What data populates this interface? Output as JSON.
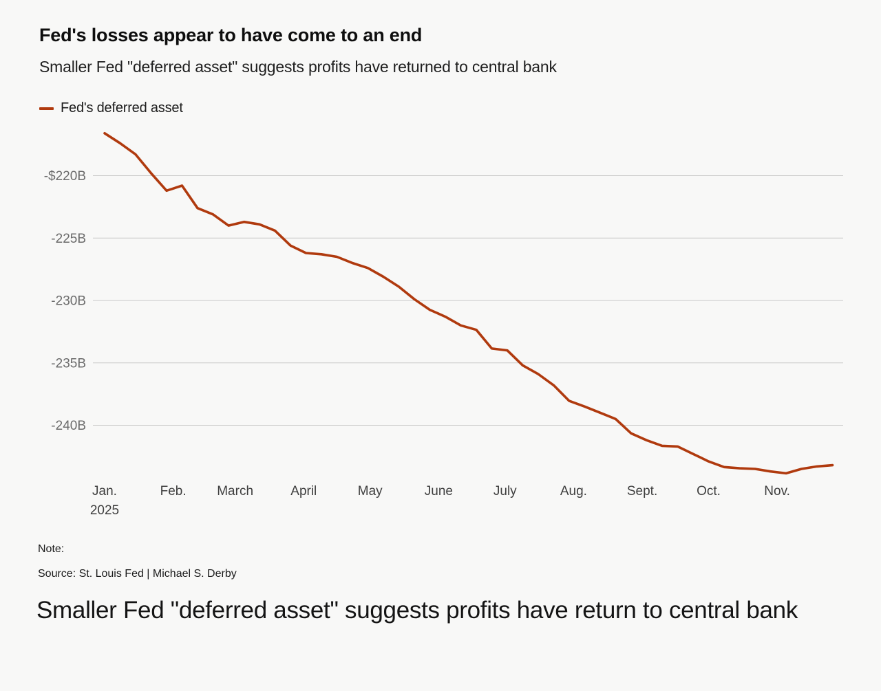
{
  "header": {
    "title": "Fed's losses appear to have come to an end",
    "subtitle": "Smaller Fed \"deferred asset\" suggests profits have returned to central bank"
  },
  "legend": {
    "label": "Fed's deferred asset",
    "swatch_color": "#b03a0e"
  },
  "chart_data": {
    "type": "line",
    "title": "Fed's losses appear to have come to an end",
    "subtitle": "Smaller Fed \"deferred asset\" suggests profits have returned to central bank",
    "xlabel": "",
    "ylabel": "",
    "grid": true,
    "legend_position": "top-left",
    "background_color": "#f8f8f7",
    "x_origin": "2025-01-01",
    "ylim": [
      -246,
      -215
    ],
    "y_ticks": [
      {
        "label": "-$220B",
        "value": -220
      },
      {
        "label": "-225B",
        "value": -225
      },
      {
        "label": "-230B",
        "value": -230
      },
      {
        "label": "-235B",
        "value": -235
      },
      {
        "label": "-240B",
        "value": -240
      }
    ],
    "x_ticks": [
      {
        "label": "Jan.",
        "sublabel": "2025",
        "date": "2025-01-01"
      },
      {
        "label": "Feb.",
        "date": "2025-02-01"
      },
      {
        "label": "March",
        "date": "2025-03-01"
      },
      {
        "label": "April",
        "date": "2025-04-01"
      },
      {
        "label": "May",
        "date": "2025-05-01"
      },
      {
        "label": "June",
        "date": "2025-06-01"
      },
      {
        "label": "July",
        "date": "2025-07-01"
      },
      {
        "label": "Aug.",
        "date": "2025-08-01"
      },
      {
        "label": "Sept.",
        "date": "2025-09-01"
      },
      {
        "label": "Oct.",
        "date": "2025-10-01"
      },
      {
        "label": "Nov.",
        "date": "2025-11-01"
      }
    ],
    "series": [
      {
        "name": "Fed's deferred asset",
        "color": "#b03a0e",
        "unit": "billion USD",
        "x": [
          "2025-01-01",
          "2025-01-08",
          "2025-01-15",
          "2025-01-22",
          "2025-01-29",
          "2025-02-05",
          "2025-02-12",
          "2025-02-19",
          "2025-02-26",
          "2025-03-05",
          "2025-03-12",
          "2025-03-19",
          "2025-03-26",
          "2025-04-02",
          "2025-04-09",
          "2025-04-16",
          "2025-04-23",
          "2025-04-30",
          "2025-05-07",
          "2025-05-14",
          "2025-05-21",
          "2025-05-28",
          "2025-06-04",
          "2025-06-11",
          "2025-06-18",
          "2025-06-25",
          "2025-07-02",
          "2025-07-09",
          "2025-07-16",
          "2025-07-23",
          "2025-07-30",
          "2025-08-06",
          "2025-08-13",
          "2025-08-20",
          "2025-08-27",
          "2025-09-03",
          "2025-09-10",
          "2025-09-17",
          "2025-09-24",
          "2025-10-01",
          "2025-10-08",
          "2025-10-15",
          "2025-10-22",
          "2025-10-29",
          "2025-11-05",
          "2025-11-12",
          "2025-11-19",
          "2025-11-26"
        ],
        "values": [
          -216.6,
          -217.4,
          -218.3,
          -219.8,
          -221.2,
          -220.8,
          -222.6,
          -223.1,
          -224.0,
          -223.7,
          -223.9,
          -224.4,
          -225.6,
          -226.2,
          -226.3,
          -226.5,
          -227.0,
          -227.4,
          -228.1,
          -228.9,
          -229.9,
          -230.75,
          -231.3,
          -232.0,
          -232.35,
          -233.85,
          -234.0,
          -235.2,
          -235.9,
          -236.8,
          -238.05,
          -238.5,
          -239.0,
          -239.5,
          -240.65,
          -241.2,
          -241.65,
          -241.7,
          -242.3,
          -242.9,
          -243.35,
          -243.45,
          -243.5,
          -243.7,
          -243.85,
          -243.5,
          -243.3,
          -243.2
        ]
      }
    ]
  },
  "notes": {
    "note_label": "Note:",
    "source": "Source: St. Louis Fed | Michael S. Derby"
  },
  "footer": {
    "headline": "Smaller Fed \"deferred asset\" suggests profits have return to central bank"
  }
}
